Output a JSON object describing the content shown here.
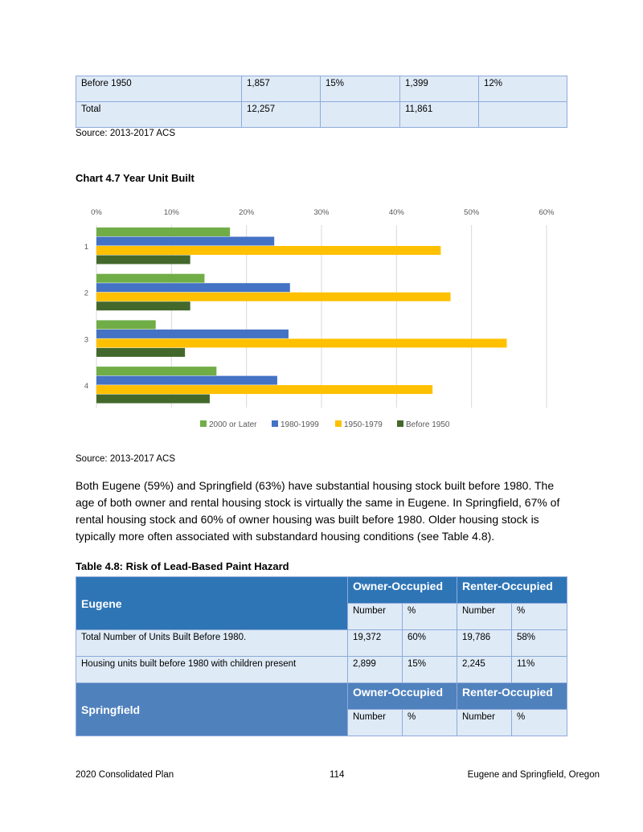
{
  "top_table": {
    "rows": [
      [
        "Before 1950",
        "1,857",
        "15%",
        "1,399",
        "12%"
      ],
      [
        "Total",
        "12,257",
        "",
        "11,861",
        ""
      ]
    ]
  },
  "source1": "Source: 2013-2017 ACS",
  "chart_title": "Chart 4.7 Year Unit Built",
  "chart_data": {
    "type": "bar",
    "orientation": "horizontal",
    "categories": [
      "1",
      "2",
      "3",
      "4"
    ],
    "xlim": [
      0,
      60
    ],
    "xticks": [
      "0%",
      "10%",
      "20%",
      "30%",
      "40%",
      "50%",
      "60%"
    ],
    "grid": true,
    "legend": "bottom",
    "series": [
      {
        "name": "2000 or Later",
        "color": "#70ad47",
        "values": [
          17.8,
          14.4,
          7.9,
          16.0
        ]
      },
      {
        "name": "1980-1999",
        "color": "#4472c4",
        "values": [
          23.7,
          25.8,
          25.6,
          24.1
        ]
      },
      {
        "name": "1950-1979",
        "color": "#ffc000",
        "values": [
          45.9,
          47.2,
          54.7,
          44.8
        ]
      },
      {
        "name": "Before 1950",
        "color": "#43682b",
        "values": [
          12.5,
          12.5,
          11.8,
          15.1
        ]
      }
    ]
  },
  "source2": "Source: 2013-2017 ACS",
  "paragraph": "Both Eugene (59%) and Springfield (63%) have substantial housing stock built before 1980.  The age of both owner and rental housing stock is virtually the same in Eugene.   In Springfield, 67% of rental housing stock and 60% of owner housing was built before 1980.  Older housing stock is typically more often associated with substandard housing conditions (see Table 4.8).",
  "table48": {
    "title": "Table 4.8: Risk of Lead-Based Paint Hazard",
    "eugene": "Eugene",
    "springfield": "Springfield",
    "owner": "Owner-Occupied",
    "renter": "Renter-Occupied",
    "number": "Number",
    "pct": "%",
    "rows": [
      [
        "Total Number of Units Built Before 1980.",
        "19,372",
        "60%",
        "19,786",
        "58%"
      ],
      [
        "Housing units built before 1980 with children present",
        "2,899",
        "15%",
        "2,245",
        "11%"
      ]
    ]
  },
  "footer": {
    "left": "2020 Consolidated Plan",
    "center": "114",
    "right": "Eugene and Springfield, Oregon"
  }
}
